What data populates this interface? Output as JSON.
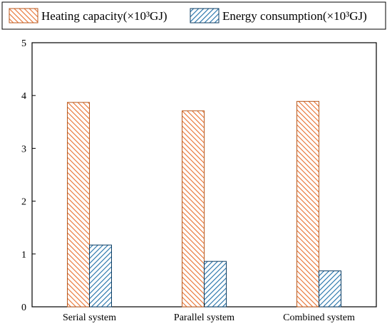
{
  "chart_data": {
    "type": "bar",
    "categories": [
      "Serial system",
      "Parallel system",
      "Combined system"
    ],
    "series": [
      {
        "name": "Heating capacity(×10³GJ)",
        "values": [
          3.87,
          3.71,
          3.89
        ],
        "color": "#f4874b",
        "hatch_color": "#b85a1f"
      },
      {
        "name": "Energy consumption(×10³GJ)",
        "values": [
          1.17,
          0.86,
          0.68
        ],
        "color": "#2e7fb8",
        "hatch_color": "#0d3d63"
      }
    ],
    "ylim": [
      0,
      5
    ],
    "yticks": [
      "0",
      "1",
      "2",
      "3",
      "4",
      "5"
    ],
    "legend_position": "top",
    "grid": false
  }
}
